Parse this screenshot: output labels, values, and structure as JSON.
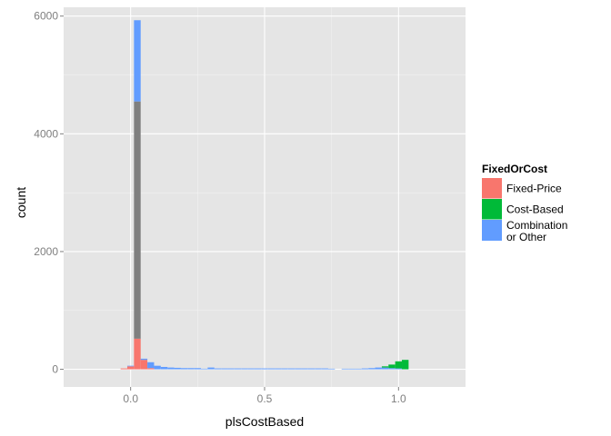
{
  "chart_data": {
    "type": "bar",
    "xlabel": "plsCostBased",
    "ylabel": "count",
    "xlim": [
      -0.25,
      1.25
    ],
    "ylim": [
      -300,
      6150
    ],
    "x_ticks": [
      0.0,
      0.5,
      1.0
    ],
    "x_tick_labels": [
      "0.0",
      "0.5",
      "1.0"
    ],
    "y_ticks": [
      0,
      2000,
      4000,
      6000
    ],
    "y_tick_labels": [
      "0",
      "2000",
      "4000",
      "6000"
    ],
    "binwidth": 0.025,
    "grid": true,
    "stacked": true,
    "legend": {
      "title": "FixedOrCost",
      "position": "right",
      "entries": [
        {
          "key": "fixed",
          "label_lines": [
            "Fixed-Price"
          ],
          "color": "#F8766D"
        },
        {
          "key": "cost",
          "label_lines": [
            "Cost-Based"
          ],
          "color": "#00BA38"
        },
        {
          "key": "combo",
          "label_lines": [
            "Combination",
            "or Other"
          ],
          "color": "#619CFF"
        }
      ]
    },
    "series": [
      {
        "key": "fixed",
        "color": "#F8766D",
        "points": [
          {
            "x": -0.025,
            "y": 15
          },
          {
            "x": 0.0,
            "y": 50
          },
          {
            "x": 0.025,
            "y": 520
          },
          {
            "x": 0.05,
            "y": 160
          },
          {
            "x": 0.075,
            "y": 20
          }
        ]
      },
      {
        "key": "na",
        "color": "#7F7F7F",
        "points": [
          {
            "x": 0.025,
            "y": 4030
          }
        ]
      },
      {
        "key": "combo",
        "color": "#619CFF",
        "points": [
          {
            "x": 0.0,
            "y": 10
          },
          {
            "x": 0.025,
            "y": 1380
          },
          {
            "x": 0.05,
            "y": 20
          },
          {
            "x": 0.075,
            "y": 100
          },
          {
            "x": 0.1,
            "y": 60
          },
          {
            "x": 0.125,
            "y": 40
          },
          {
            "x": 0.15,
            "y": 30
          },
          {
            "x": 0.175,
            "y": 25
          },
          {
            "x": 0.2,
            "y": 20
          },
          {
            "x": 0.225,
            "y": 20
          },
          {
            "x": 0.25,
            "y": 20
          },
          {
            "x": 0.275,
            "y": 10
          },
          {
            "x": 0.3,
            "y": 30
          },
          {
            "x": 0.325,
            "y": 15
          },
          {
            "x": 0.35,
            "y": 15
          },
          {
            "x": 0.375,
            "y": 15
          },
          {
            "x": 0.4,
            "y": 15
          },
          {
            "x": 0.425,
            "y": 15
          },
          {
            "x": 0.45,
            "y": 15
          },
          {
            "x": 0.475,
            "y": 15
          },
          {
            "x": 0.5,
            "y": 15
          },
          {
            "x": 0.525,
            "y": 15
          },
          {
            "x": 0.55,
            "y": 15
          },
          {
            "x": 0.575,
            "y": 15
          },
          {
            "x": 0.6,
            "y": 15
          },
          {
            "x": 0.625,
            "y": 15
          },
          {
            "x": 0.65,
            "y": 15
          },
          {
            "x": 0.675,
            "y": 15
          },
          {
            "x": 0.7,
            "y": 15
          },
          {
            "x": 0.725,
            "y": 15
          },
          {
            "x": 0.75,
            "y": 10
          },
          {
            "x": 0.8,
            "y": 10
          },
          {
            "x": 0.825,
            "y": 10
          },
          {
            "x": 0.85,
            "y": 10
          },
          {
            "x": 0.875,
            "y": 15
          },
          {
            "x": 0.9,
            "y": 20
          },
          {
            "x": 0.925,
            "y": 30
          },
          {
            "x": 0.95,
            "y": 30
          },
          {
            "x": 0.975,
            "y": 20
          },
          {
            "x": 1.0,
            "y": 15
          }
        ]
      },
      {
        "key": "cost",
        "color": "#00BA38",
        "points": [
          {
            "x": 0.95,
            "y": 20
          },
          {
            "x": 0.975,
            "y": 60
          },
          {
            "x": 1.0,
            "y": 120
          },
          {
            "x": 1.025,
            "y": 160
          }
        ]
      }
    ]
  }
}
